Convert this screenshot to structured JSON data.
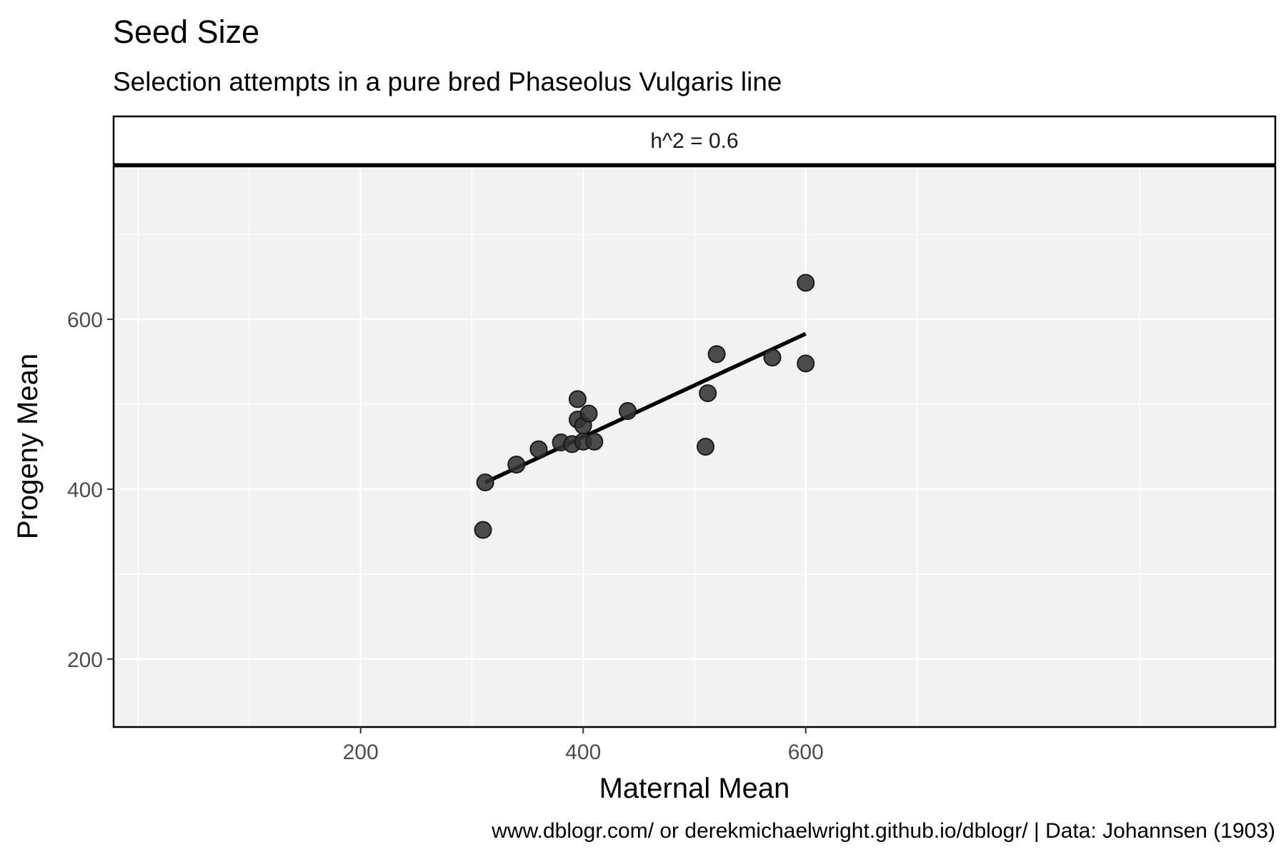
{
  "chart_data": {
    "type": "scatter",
    "title": "Seed Size",
    "subtitle": "Selection attempts in a pure bred Phaseolus Vulgaris line",
    "facet_label": "h^2 = 0.6",
    "xlabel": "Maternal Mean",
    "ylabel": "Progeny Mean",
    "caption": "www.dblogr.com/ or derekmichaelwright.github.io/dblogr/ | Data: Johannsen (1903)",
    "xlim": [
      -22,
      1022
    ],
    "ylim": [
      120,
      780
    ],
    "x_ticks": [
      200,
      400,
      600
    ],
    "y_ticks": [
      200,
      400,
      600
    ],
    "x_minor_grid": [
      100,
      300,
      500,
      700
    ],
    "x_extra_grid": [
      0,
      900
    ],
    "y_minor_grid": [
      300,
      500,
      700
    ],
    "grid": true,
    "background": "#f2f2f2",
    "point_color": "#333333",
    "points": [
      {
        "x": 310,
        "y": 352
      },
      {
        "x": 312,
        "y": 408
      },
      {
        "x": 340,
        "y": 429
      },
      {
        "x": 360,
        "y": 447
      },
      {
        "x": 380,
        "y": 455
      },
      {
        "x": 390,
        "y": 453
      },
      {
        "x": 395,
        "y": 506
      },
      {
        "x": 395,
        "y": 482
      },
      {
        "x": 400,
        "y": 475
      },
      {
        "x": 400,
        "y": 456
      },
      {
        "x": 405,
        "y": 489
      },
      {
        "x": 410,
        "y": 456
      },
      {
        "x": 440,
        "y": 492
      },
      {
        "x": 510,
        "y": 450
      },
      {
        "x": 512,
        "y": 513
      },
      {
        "x": 520,
        "y": 559
      },
      {
        "x": 570,
        "y": 555
      },
      {
        "x": 600,
        "y": 548
      },
      {
        "x": 600,
        "y": 643
      }
    ],
    "trend_line": {
      "x": [
        312,
        600
      ],
      "y": [
        408,
        583
      ]
    }
  }
}
